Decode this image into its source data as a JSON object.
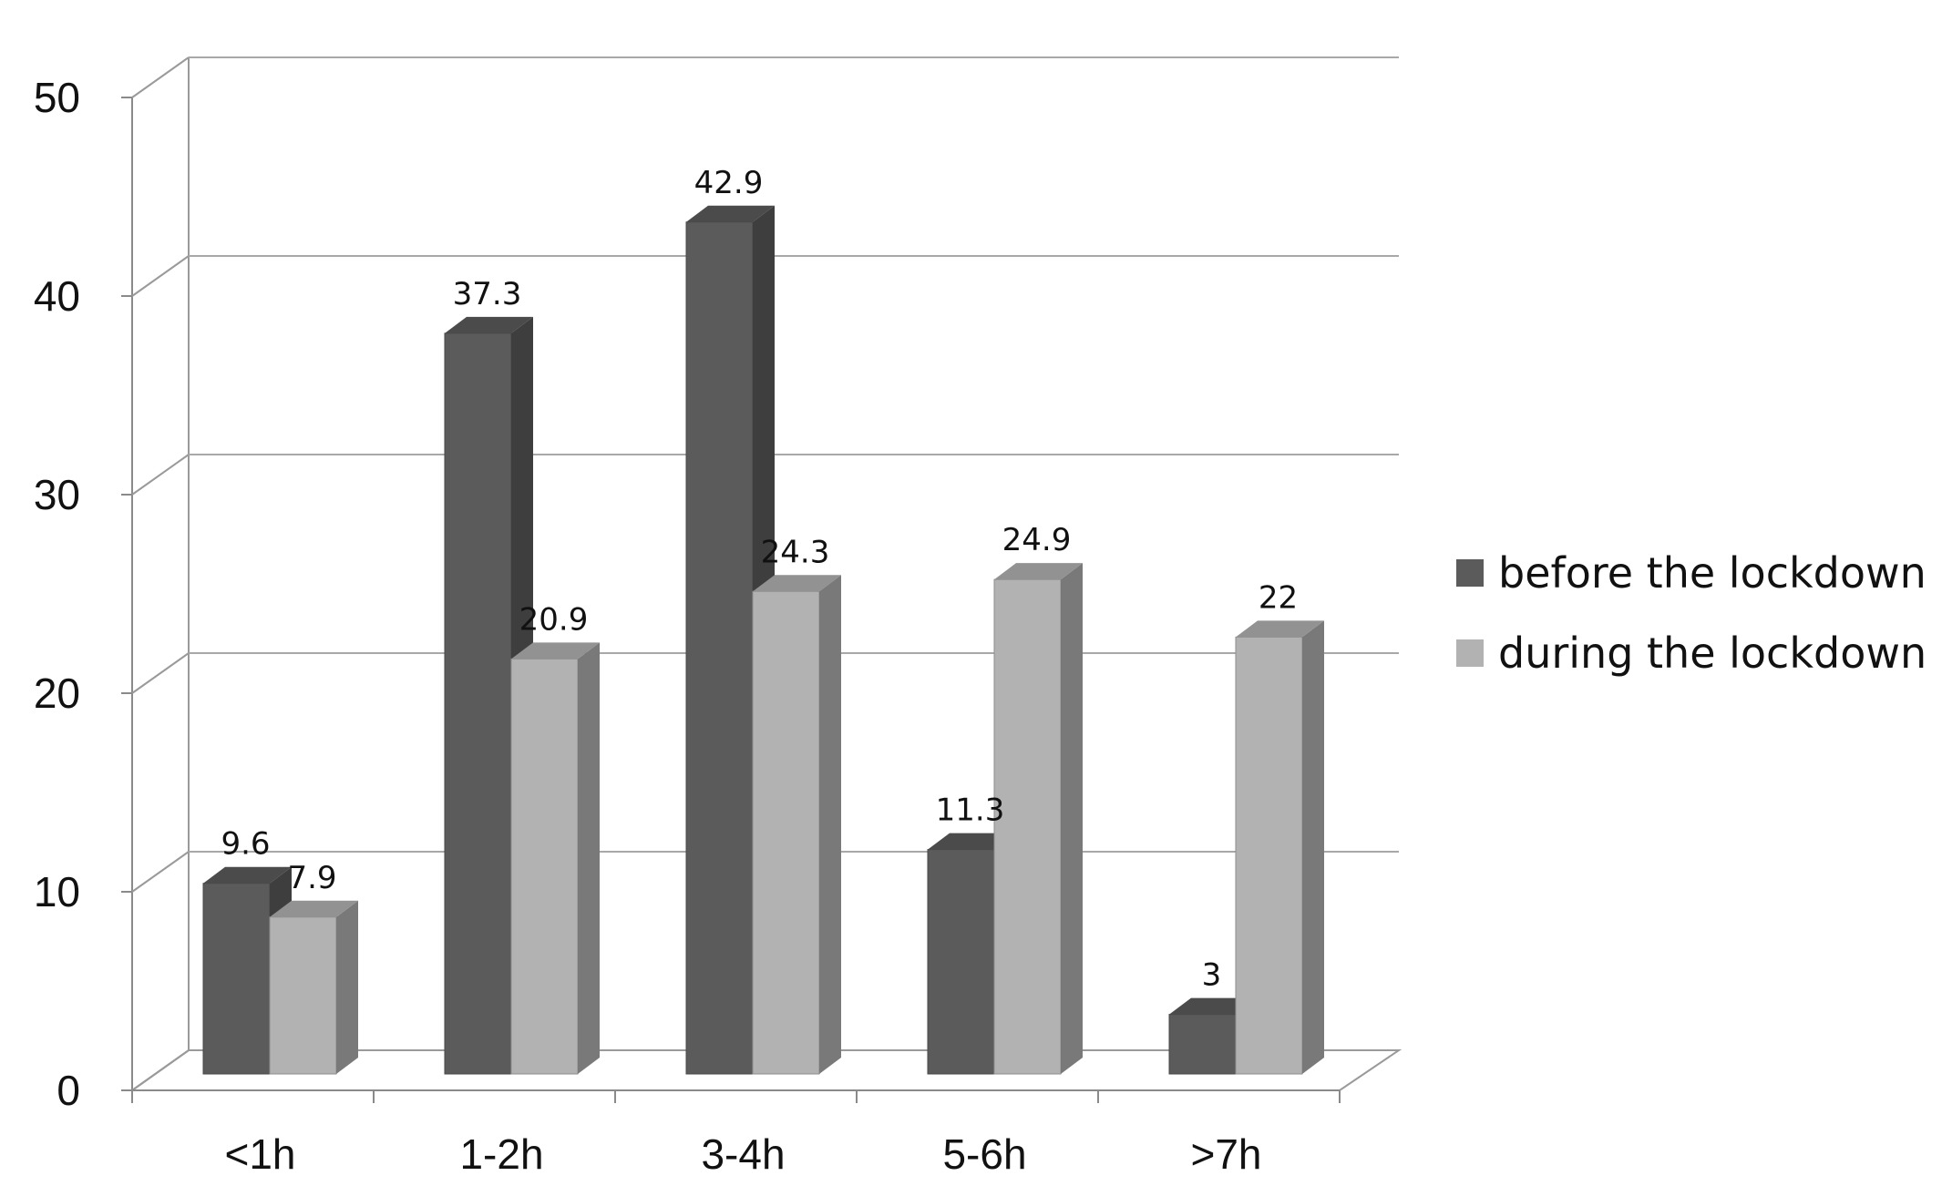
{
  "chart_data": {
    "type": "bar",
    "title": "",
    "xlabel": "",
    "ylabel": "",
    "categories": [
      "<1h",
      "1-2h",
      "3-4h",
      "5-6h",
      ">7h"
    ],
    "series": [
      {
        "name": "before the lockdown",
        "values": [
          9.6,
          37.3,
          42.9,
          11.3,
          3
        ],
        "labels": [
          "9.6",
          "37.3",
          "42.9",
          "11.3",
          "3"
        ],
        "color": "#5b5b5b"
      },
      {
        "name": "during the lockdown",
        "values": [
          7.9,
          20.9,
          24.3,
          24.9,
          22
        ],
        "labels": [
          "7.9",
          "20.9",
          "24.3",
          "24.9",
          "22"
        ],
        "color": "#b2b2b2"
      }
    ],
    "ylim": [
      0,
      50
    ],
    "yticks": [
      0,
      10,
      20,
      30,
      40,
      50
    ],
    "ytick_labels": [
      "0",
      "10",
      "20",
      "30",
      "40",
      "50"
    ],
    "grid": true,
    "legend_position": "right",
    "style": "3d-clustered-column"
  }
}
